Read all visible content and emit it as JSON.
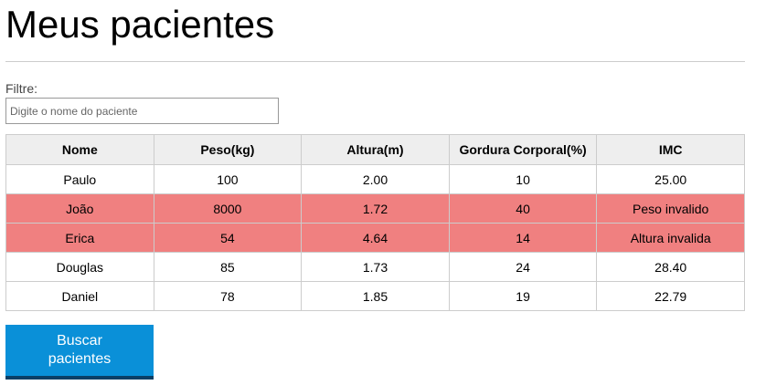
{
  "page": {
    "title": "Meus pacientes"
  },
  "filter": {
    "label": "Filtre:",
    "placeholder": "Digite o nome do paciente",
    "value": ""
  },
  "table": {
    "headers": [
      "Nome",
      "Peso(kg)",
      "Altura(m)",
      "Gordura Corporal(%)",
      "IMC"
    ],
    "rows": [
      {
        "nome": "Paulo",
        "peso": "100",
        "altura": "2.00",
        "gordura": "10",
        "imc": "25.00",
        "invalid": false
      },
      {
        "nome": "João",
        "peso": "8000",
        "altura": "1.72",
        "gordura": "40",
        "imc": "Peso invalido",
        "invalid": true
      },
      {
        "nome": "Erica",
        "peso": "54",
        "altura": "4.64",
        "gordura": "14",
        "imc": "Altura invalida",
        "invalid": true
      },
      {
        "nome": "Douglas",
        "peso": "85",
        "altura": "1.73",
        "gordura": "24",
        "imc": "28.40",
        "invalid": false
      },
      {
        "nome": "Daniel",
        "peso": "78",
        "altura": "1.85",
        "gordura": "19",
        "imc": "22.79",
        "invalid": false
      }
    ]
  },
  "search_button": {
    "label": "Buscar pacientes"
  },
  "colors": {
    "invalid_row": "#f08080",
    "button_bg": "#0a90d8",
    "button_border": "#0a3f66",
    "header_bg": "#eeeeee"
  }
}
